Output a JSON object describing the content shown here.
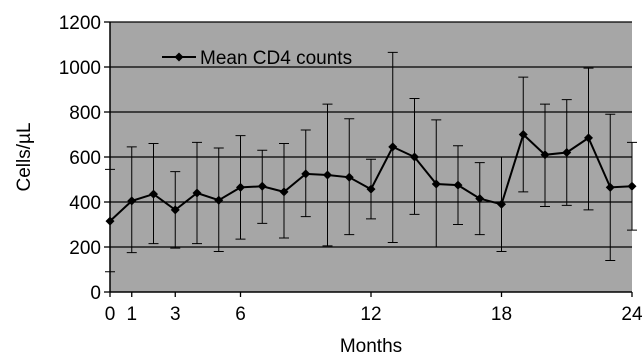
{
  "chart_data": {
    "type": "line",
    "title": "",
    "xlabel": "Months",
    "ylabel": "Cells/µL",
    "xlim": [
      0,
      24
    ],
    "ylim": [
      0,
      1200
    ],
    "x_ticks": [
      "0",
      "1",
      "3",
      "6",
      "12",
      "18",
      "24"
    ],
    "y_ticks": [
      "0",
      "200",
      "400",
      "600",
      "800",
      "1000",
      "1200"
    ],
    "grid": "horizontal",
    "legend_position": "top-left",
    "colors": {
      "plot_background": "#a6a6a6",
      "line": "#000000",
      "grid": "#000000"
    },
    "series": [
      {
        "name": "Mean CD4 counts",
        "x": [
          0,
          1,
          2,
          3,
          4,
          5,
          6,
          7,
          8,
          9,
          10,
          11,
          12,
          13,
          14,
          15,
          16,
          17,
          18,
          19,
          20,
          21,
          22,
          23,
          24
        ],
        "values": [
          315,
          405,
          435,
          365,
          440,
          408,
          465,
          470,
          445,
          525,
          520,
          510,
          457,
          645,
          600,
          480,
          475,
          415,
          390,
          700,
          610,
          620,
          685,
          465,
          470
        ],
        "error_low": [
          90,
          175,
          215,
          195,
          215,
          180,
          235,
          305,
          240,
          335,
          205,
          255,
          325,
          220,
          345,
          200,
          300,
          255,
          180,
          445,
          380,
          385,
          365,
          140,
          275
        ],
        "error_high": [
          545,
          645,
          660,
          535,
          665,
          640,
          695,
          630,
          660,
          720,
          835,
          770,
          590,
          1065,
          860,
          765,
          650,
          575,
          600,
          955,
          835,
          855,
          995,
          790,
          665
        ]
      }
    ]
  }
}
